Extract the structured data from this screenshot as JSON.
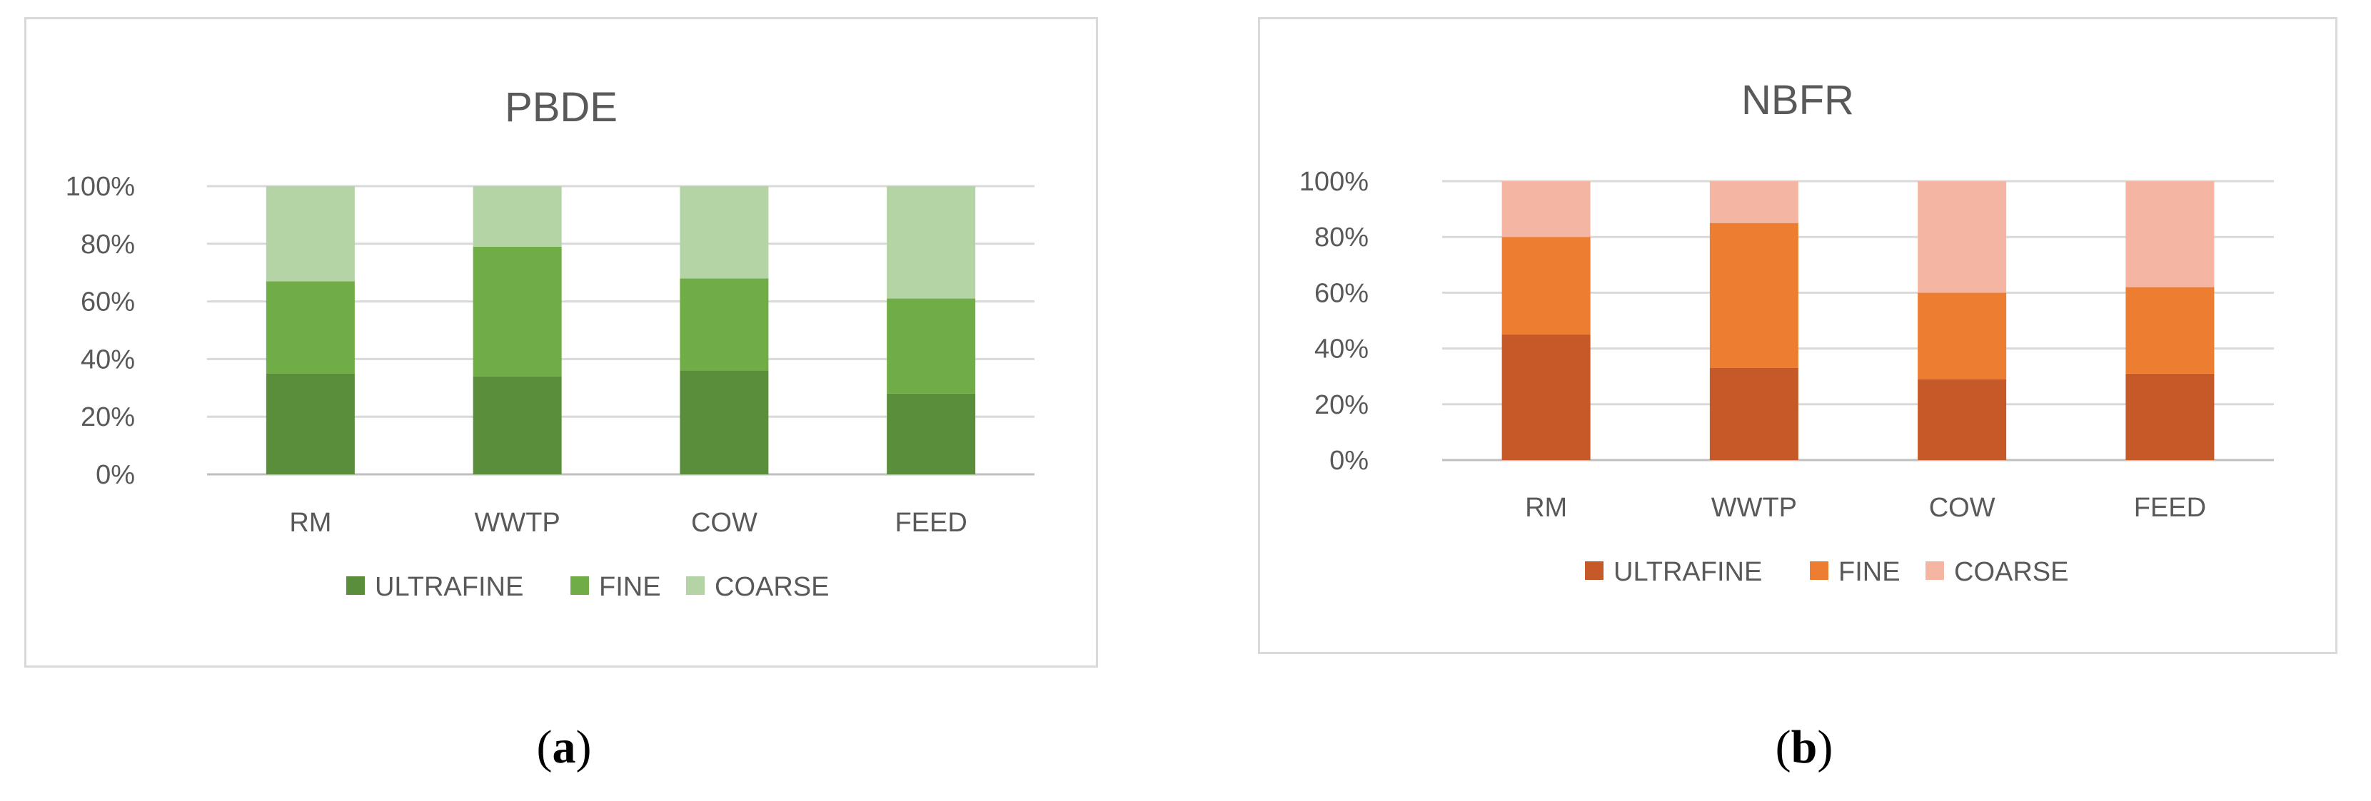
{
  "captions": {
    "a": {
      "open": "(",
      "letter": "a",
      "close": ")"
    },
    "b": {
      "open": "(",
      "letter": "b",
      "close": ")"
    }
  },
  "chart_data": [
    {
      "type": "bar",
      "stacked": true,
      "title": "PBDE",
      "categories": [
        "RM",
        "WWTP",
        "COW",
        "FEED"
      ],
      "series": [
        {
          "name": "ULTRAFINE",
          "values": [
            35,
            34,
            36,
            28
          ]
        },
        {
          "name": "FINE",
          "values": [
            32,
            45,
            32,
            33
          ]
        },
        {
          "name": "COARSE",
          "values": [
            33,
            21,
            32,
            39
          ]
        }
      ],
      "colors": [
        "#5b8e3a",
        "#70ad47",
        "#b5d4a5"
      ],
      "yticks": [
        "0%",
        "20%",
        "40%",
        "60%",
        "80%",
        "100%"
      ],
      "ylim": [
        0,
        100
      ],
      "grid": true,
      "legend": "bottom"
    },
    {
      "type": "bar",
      "stacked": true,
      "title": "NBFR",
      "categories": [
        "RM",
        "WWTP",
        "COW",
        "FEED"
      ],
      "series": [
        {
          "name": "ULTRAFINE",
          "values": [
            45,
            33,
            29,
            31
          ]
        },
        {
          "name": "FINE",
          "values": [
            35,
            52,
            31,
            31
          ]
        },
        {
          "name": "COARSE",
          "values": [
            20,
            15,
            40,
            38
          ]
        }
      ],
      "colors": [
        "#c55a28",
        "#ed7d31",
        "#f4b6a2"
      ],
      "yticks": [
        "0%",
        "20%",
        "40%",
        "60%",
        "80%",
        "100%"
      ],
      "ylim": [
        0,
        100
      ],
      "grid": true,
      "legend": "bottom"
    }
  ]
}
